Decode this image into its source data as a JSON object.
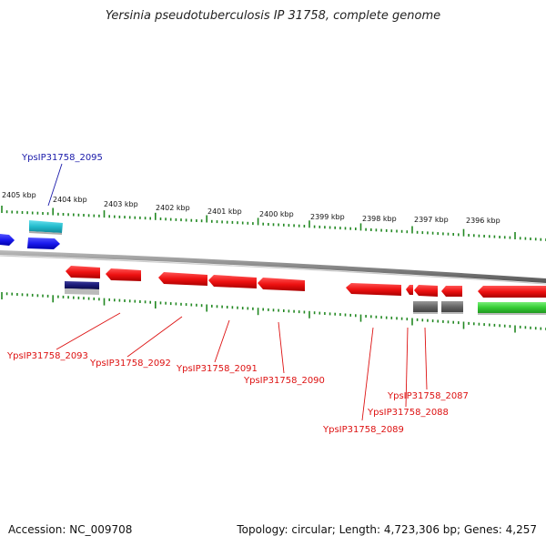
{
  "title": "Yersinia pseudotuberculosis IP 31758, complete genome",
  "footer": {
    "accession": "Accession: NC_009708",
    "summary": "Topology: circular; Length: 4,723,306 bp; Genes: 4,257"
  },
  "colors": {
    "forward_gene": "#1a1aee",
    "reverse_gene": "#ee1111",
    "cyan_feature": "#22bbcc",
    "navy_feature": "#1a1a77",
    "gray_feature": "#666666",
    "green_feature": "#33cc33",
    "tick": "#228822",
    "backbone": "#888888",
    "label_blue": "#1a1aaa",
    "label_red": "#dd1111"
  },
  "ruler": {
    "labels": [
      "2405 kbp",
      "2404 kbp",
      "2403 kbp",
      "2402 kbp",
      "2401 kbp",
      "2400 kbp",
      "2399 kbp",
      "2398 kbp",
      "2397 kbp",
      "2396 kbp"
    ]
  },
  "genes": [
    {
      "id": "YpsIP31758_2095",
      "strand": "forward",
      "color": "blue"
    },
    {
      "id": "YpsIP31758_2093",
      "strand": "reverse",
      "color": "red"
    },
    {
      "id": "YpsIP31758_2092",
      "strand": "reverse",
      "color": "red"
    },
    {
      "id": "YpsIP31758_2091",
      "strand": "reverse",
      "color": "red"
    },
    {
      "id": "YpsIP31758_2090",
      "strand": "reverse",
      "color": "red"
    },
    {
      "id": "YpsIP31758_2089",
      "strand": "reverse",
      "color": "red"
    },
    {
      "id": "YpsIP31758_2088",
      "strand": "reverse",
      "color": "red"
    },
    {
      "id": "YpsIP31758_2087",
      "strand": "reverse",
      "color": "red"
    }
  ]
}
